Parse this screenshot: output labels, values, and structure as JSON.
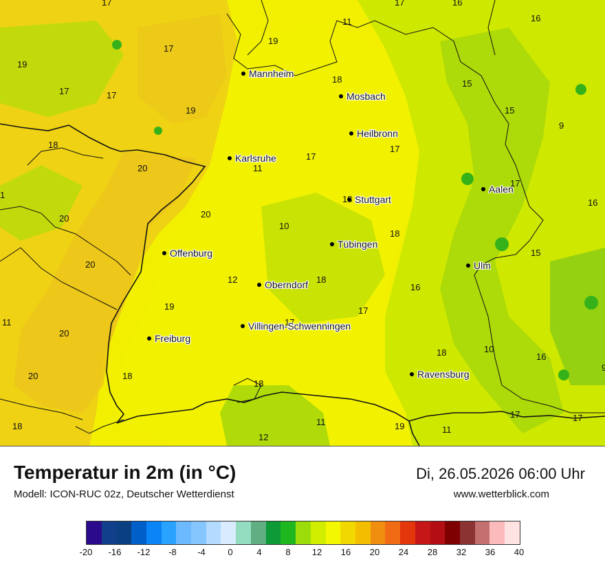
{
  "header": {
    "title": "Temperatur in 2m (in °C)",
    "model": "Modell: ICON-RUC 02z, Deutscher Wetterdienst",
    "datetime": "Di, 26.05.2026 06:00 Uhr",
    "website": "www.wetterblick.com"
  },
  "cities": [
    {
      "name": "Mannheim"
    },
    {
      "name": "Mosbach"
    },
    {
      "name": "Heilbronn"
    },
    {
      "name": "Karlsruhe"
    },
    {
      "name": "Stuttgart"
    },
    {
      "name": "Aalen"
    },
    {
      "name": "Tübingen"
    },
    {
      "name": "Offenburg"
    },
    {
      "name": "Ulm"
    },
    {
      "name": "Oberndorf"
    },
    {
      "name": "Villingen-Schwenningen"
    },
    {
      "name": "Freiburg"
    },
    {
      "name": "Ravensburg"
    }
  ],
  "temperature_values": [
    "17",
    "17",
    "16",
    "11",
    "16",
    "19",
    "19",
    "17",
    "18",
    "17",
    "17",
    "15",
    "15",
    "19",
    "9",
    "18",
    "17",
    "20",
    "11",
    "17",
    "17",
    "18",
    "16",
    "1",
    "20",
    "20",
    "10",
    "18",
    "15",
    "20",
    "12",
    "18",
    "16",
    "19",
    "17",
    "11",
    "17",
    "20",
    "10",
    "16",
    "20",
    "18",
    "18",
    "9",
    "18",
    "11",
    "19",
    "17",
    "17",
    "11",
    "12",
    "18"
  ],
  "colorbar": {
    "colors": [
      "#2c0a8c",
      "#123f8c",
      "#0a3f82",
      "#005fc8",
      "#0b84f5",
      "#2aa2ff",
      "#6cb9ff",
      "#86c6ff",
      "#b3dbff",
      "#d8ebff",
      "#94dcc0",
      "#60ae82",
      "#0c9b36",
      "#1fb71f",
      "#9bdc0a",
      "#d1ee00",
      "#f3f800",
      "#f1d900",
      "#f4be00",
      "#f08f0f",
      "#f06b14",
      "#e3360b",
      "#c51717",
      "#b30e14",
      "#7e0000",
      "#8b3232",
      "#c47070",
      "#fbbabb",
      "#ffe3e3"
    ],
    "ticks": [
      "-20",
      "-16",
      "-12",
      "-8",
      "-4",
      "0",
      "4",
      "8",
      "12",
      "16",
      "20",
      "24",
      "28",
      "32",
      "36",
      "40"
    ]
  },
  "map_colors": {
    "base": "#f2f000",
    "warm": "#efce13",
    "cool": "#cfe800",
    "green": "#9ad40a",
    "dark_green": "#35b21a",
    "border": "#111111"
  }
}
